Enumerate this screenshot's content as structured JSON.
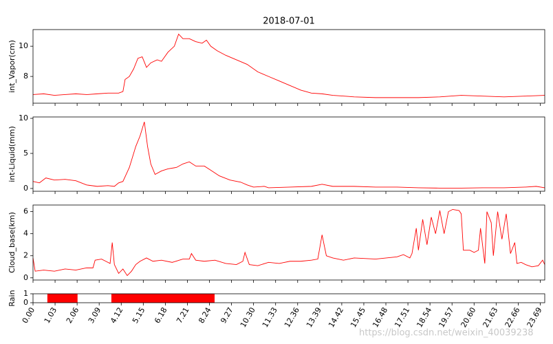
{
  "chart_data": [
    {
      "type": "line",
      "title": "2018-07-01",
      "y_label": "int_Vapor(cm)",
      "color": "#ff0000",
      "xlim": [
        0,
        23.9
      ],
      "ylim": [
        6.23,
        11.1
      ],
      "yticks": [
        8,
        10
      ],
      "x": [
        0,
        0.5,
        1,
        1.5,
        2,
        2.5,
        3,
        3.5,
        4,
        4.2,
        4.3,
        4.5,
        4.7,
        4.9,
        5.1,
        5.3,
        5.5,
        5.8,
        6.0,
        6.3,
        6.6,
        6.8,
        7.0,
        7.3,
        7.6,
        7.9,
        8.1,
        8.3,
        8.6,
        9.0,
        9.5,
        10,
        10.5,
        11,
        11.5,
        12,
        12.5,
        13,
        13.5,
        14,
        15,
        16,
        17,
        18,
        19,
        20,
        21,
        22,
        23,
        23.9
      ],
      "values": [
        6.8,
        6.85,
        6.75,
        6.8,
        6.85,
        6.8,
        6.85,
        6.9,
        6.9,
        7.0,
        7.8,
        8.0,
        8.5,
        9.2,
        9.3,
        8.6,
        8.9,
        9.1,
        9.0,
        9.6,
        10.0,
        10.8,
        10.5,
        10.5,
        10.3,
        10.2,
        10.4,
        10.0,
        9.7,
        9.4,
        9.1,
        8.8,
        8.3,
        8.0,
        7.7,
        7.4,
        7.1,
        6.9,
        6.85,
        6.75,
        6.65,
        6.6,
        6.6,
        6.6,
        6.65,
        6.75,
        6.7,
        6.65,
        6.7,
        6.75
      ]
    },
    {
      "type": "line",
      "y_label": "int-Liquid(mm)",
      "color": "#ff0000",
      "xlim": [
        0,
        23.9
      ],
      "ylim": [
        -0.4,
        10.2
      ],
      "yticks": [
        0,
        5,
        10
      ],
      "x": [
        0,
        0.3,
        0.6,
        1,
        1.5,
        2,
        2.5,
        3,
        3.5,
        3.8,
        4.0,
        4.2,
        4.5,
        4.8,
        5.0,
        5.2,
        5.35,
        5.5,
        5.7,
        6.0,
        6.3,
        6.7,
        7.0,
        7.3,
        7.6,
        8,
        8.3,
        8.7,
        9.2,
        9.7,
        10,
        10.3,
        10.8,
        11,
        12,
        13,
        13.5,
        14,
        15,
        16,
        17,
        18,
        19,
        20,
        21,
        22,
        23,
        23.5,
        23.9
      ],
      "values": [
        1.0,
        0.8,
        1.5,
        1.2,
        1.3,
        1.1,
        0.5,
        0.3,
        0.4,
        0.3,
        0.8,
        1.0,
        3,
        6,
        7.5,
        9.5,
        6,
        3.5,
        2.0,
        2.5,
        2.8,
        3.0,
        3.5,
        3.8,
        3.2,
        3.2,
        2.6,
        1.8,
        1.2,
        0.9,
        0.5,
        0.2,
        0.3,
        0.1,
        0.2,
        0.3,
        0.6,
        0.3,
        0.3,
        0.2,
        0.2,
        0.1,
        0.05,
        0.05,
        0.1,
        0.1,
        0.2,
        0.3,
        0.1
      ]
    },
    {
      "type": "line",
      "y_label": "Cloud_base(km)",
      "color": "#ff0000",
      "xlim": [
        0,
        23.9
      ],
      "ylim": [
        -0.2,
        6.6
      ],
      "yticks": [
        0,
        2,
        4,
        6
      ],
      "x": [
        0,
        0.1,
        0.5,
        1,
        1.5,
        2,
        2.5,
        2.8,
        2.9,
        3.2,
        3.4,
        3.6,
        3.7,
        3.8,
        4.0,
        4.2,
        4.4,
        4.6,
        4.8,
        5.0,
        5.3,
        5.6,
        6,
        6.5,
        7,
        7.3,
        7.4,
        7.6,
        8,
        8.5,
        9,
        9.5,
        9.8,
        9.9,
        10.1,
        10.5,
        11,
        11.5,
        12,
        12.5,
        13,
        13.3,
        13.5,
        13.7,
        14,
        14.5,
        15,
        16,
        17,
        17.3,
        17.6,
        17.7,
        17.9,
        18.0,
        18.2,
        18.4,
        18.6,
        18.8,
        19,
        19.2,
        19.4,
        19.6,
        19.9,
        20.0,
        20.1,
        20.4,
        20.6,
        20.8,
        20.9,
        21.1,
        21.2,
        21.4,
        21.5,
        21.7,
        21.9,
        22.1,
        22.3,
        22.5,
        22.6,
        22.8,
        23,
        23.3,
        23.6,
        23.8,
        23.9
      ],
      "values": [
        1.8,
        0.6,
        0.7,
        0.6,
        0.8,
        0.7,
        0.9,
        0.9,
        1.6,
        1.7,
        1.5,
        1.3,
        3.2,
        1.2,
        0.4,
        0.8,
        0.2,
        0.6,
        1.2,
        1.5,
        1.8,
        1.5,
        1.6,
        1.4,
        1.7,
        1.7,
        2.2,
        1.6,
        1.5,
        1.6,
        1.3,
        1.2,
        1.5,
        2.3,
        1.2,
        1.1,
        1.4,
        1.3,
        1.5,
        1.5,
        1.6,
        1.7,
        3.9,
        2.0,
        1.8,
        1.6,
        1.8,
        1.7,
        1.9,
        2.1,
        1.8,
        2.2,
        4.5,
        2.5,
        5.3,
        3.0,
        5.5,
        4.0,
        6.1,
        4.0,
        6.0,
        6.2,
        6.1,
        5.8,
        2.5,
        2.5,
        2.3,
        2.5,
        4.5,
        1.3,
        6.0,
        5.0,
        2.0,
        6.0,
        3.5,
        5.8,
        2.2,
        3.2,
        1.3,
        1.4,
        1.2,
        1.0,
        1.1,
        1.6,
        1.2
      ]
    },
    {
      "type": "area",
      "y_label": "Rain",
      "color": "#ff0000",
      "xlim": [
        0,
        23.9
      ],
      "ylim": [
        0,
        1
      ],
      "yticks": [
        0,
        1
      ],
      "x": [
        0,
        0.67,
        0.67,
        2.08,
        2.08,
        3.66,
        3.66,
        8.48,
        8.48,
        23.9
      ],
      "values": [
        0,
        0,
        1,
        1,
        0,
        0,
        1,
        1,
        0,
        0
      ],
      "xticks": [
        {
          "value": 0,
          "label": "0.00"
        },
        1.03,
        2.06,
        3.09,
        4.12,
        5.15,
        6.18,
        7.21,
        8.24,
        9.27,
        {
          "value": 10.3,
          "label": "10.30"
        },
        11.33,
        12.36,
        13.39,
        14.42,
        15.45,
        16.48,
        17.51,
        18.54,
        19.57,
        {
          "value": 20.6,
          "label": "20.60"
        },
        21.63,
        22.66,
        23.69
      ]
    }
  ],
  "watermark": "https://blog.csdn.net/weixin_40039238"
}
